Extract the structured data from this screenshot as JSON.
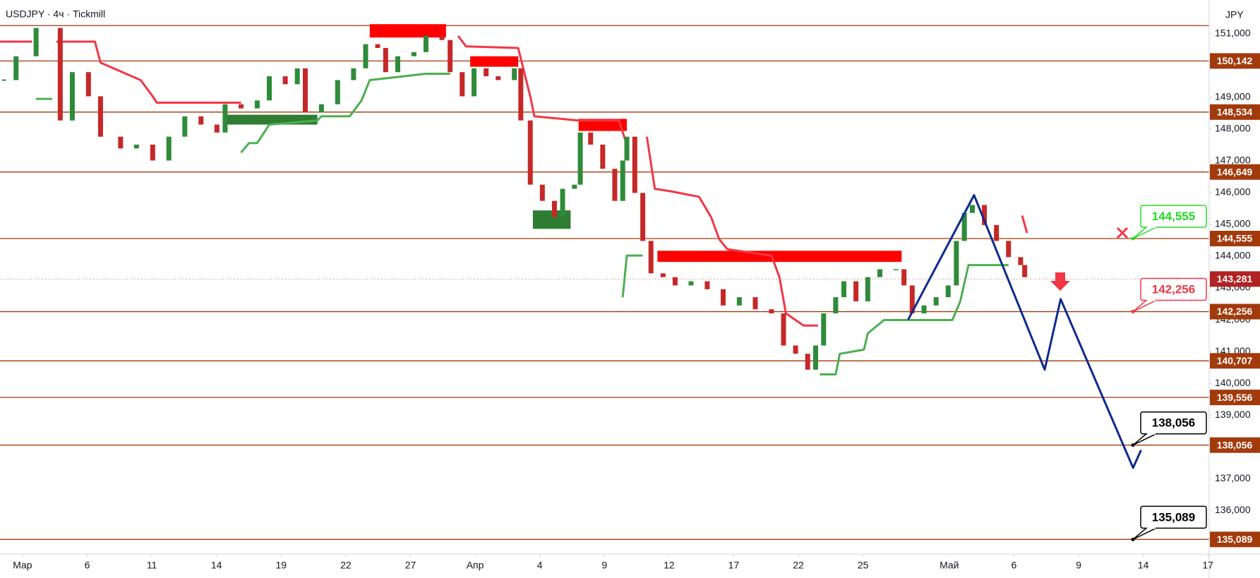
{
  "chart_data": {
    "type": "candlestick",
    "title": "USDJPY · 4ч · Tickmill",
    "y_axis_label": "JPY",
    "xlim": [
      -1.045,
      55.06
    ],
    "ylim": [
      134.63,
      152.06
    ],
    "xticks": [
      {
        "value": 0,
        "label": "Мар"
      },
      {
        "value": 3,
        "label": "6"
      },
      {
        "value": 6,
        "label": "11"
      },
      {
        "value": 9,
        "label": "14"
      },
      {
        "value": 12,
        "label": "19"
      },
      {
        "value": 15,
        "label": "22"
      },
      {
        "value": 18,
        "label": "27"
      },
      {
        "value": 21,
        "label": "Апр"
      },
      {
        "value": 24,
        "label": "4"
      },
      {
        "value": 27,
        "label": "9"
      },
      {
        "value": 30,
        "label": "12"
      },
      {
        "value": 33,
        "label": "17"
      },
      {
        "value": 36,
        "label": "22"
      },
      {
        "value": 39,
        "label": "25"
      },
      {
        "value": 43,
        "label": "Май"
      },
      {
        "value": 46,
        "label": "6"
      },
      {
        "value": 49,
        "label": "9"
      },
      {
        "value": 52,
        "label": "14"
      },
      {
        "value": 55,
        "label": "17"
      }
    ],
    "yticks": [
      {
        "value": 136,
        "label": "136,000"
      },
      {
        "value": 137,
        "label": "137,000"
      },
      {
        "value": 139,
        "label": "139,000"
      },
      {
        "value": 140,
        "label": "140,000"
      },
      {
        "value": 141,
        "label": "141,000"
      },
      {
        "value": 142,
        "label": "142,000"
      },
      {
        "value": 143,
        "label": "143,000"
      },
      {
        "value": 144,
        "label": "144,000"
      },
      {
        "value": 145,
        "label": "145,000"
      },
      {
        "value": 146,
        "label": "146,000"
      },
      {
        "value": 147,
        "label": "147,000"
      },
      {
        "value": 148,
        "label": "148,000"
      },
      {
        "value": 149,
        "label": "149,000"
      },
      {
        "value": 151,
        "label": "151,000"
      }
    ],
    "candles": {
      "up_color": "#2e8b3a",
      "down_color": "#c62828",
      "x": [
        -0.86,
        -0.3,
        0.63,
        1.75,
        2.31,
        3.06,
        3.62,
        4.55,
        5.29,
        6.04,
        6.79,
        7.53,
        8.28,
        9.02,
        9.4,
        10.14,
        10.89,
        11.45,
        12.19,
        12.75,
        13.12,
        13.87,
        14.62,
        15.36,
        15.92,
        16.48,
        16.85,
        17.41,
        18.16,
        18.72,
        19.46,
        19.84,
        20.4,
        20.95,
        21.51,
        22.07,
        22.82,
        23.12,
        23.56,
        24.12,
        24.68,
        25.06,
        25.61,
        25.88,
        26.36,
        26.92,
        27.48,
        27.85,
        28.04,
        28.41,
        28.78,
        29.16,
        29.72,
        30.28,
        31.02,
        31.77,
        32.51,
        33.26,
        34.0,
        34.75,
        35.31,
        35.87,
        36.43,
        36.8,
        37.17,
        37.73,
        38.11,
        38.67,
        39.22,
        39.78,
        40.53,
        40.9,
        41.28,
        41.83,
        42.39,
        42.95,
        43.33,
        43.7,
        44.07,
        44.63,
        45.19,
        45.75,
        46.31,
        46.5
      ],
      "close": [
        149.54,
        150.29,
        151.18,
        148.27,
        149.79,
        149.03,
        147.76,
        147.39,
        147.51,
        147.01,
        147.76,
        148.4,
        148.14,
        147.89,
        148.78,
        148.65,
        148.9,
        149.66,
        149.41,
        149.91,
        148.52,
        148.78,
        149.54,
        149.91,
        150.67,
        150.55,
        149.79,
        150.29,
        150.42,
        150.93,
        150.8,
        149.79,
        149.03,
        149.91,
        149.66,
        149.54,
        149.91,
        148.27,
        146.25,
        145.74,
        145.23,
        146.12,
        146.25,
        147.89,
        147.51,
        146.75,
        145.74,
        147.01,
        147.76,
        145.99,
        144.48,
        143.46,
        143.34,
        143.08,
        143.21,
        142.96,
        142.45,
        142.71,
        142.33,
        142.2,
        141.19,
        140.93,
        140.43,
        141.19,
        142.2,
        142.71,
        143.21,
        142.58,
        143.34,
        143.59,
        143.59,
        143.08,
        142.2,
        142.45,
        142.71,
        143.08,
        144.48,
        145.36,
        145.61,
        144.98,
        144.48,
        143.97,
        143.72,
        143.34
      ]
    },
    "supertrend_upper": {
      "color": "#f23645",
      "x": [
        -1.04,
        0.45,
        null,
        1.57,
        3.36,
        3.62,
        5.48,
        6.04,
        6.23,
        10.14,
        null,
        20.21,
        20.58,
        23.0,
        23.56,
        23.75,
        25.8,
        27.67,
        28.04,
        null,
        28.97,
        29.34,
        30.09,
        31.39,
        31.95,
        32.33,
        32.7,
        34.75,
        35.12,
        35.42,
        36.24,
        36.91,
        null,
        46.38,
        46.61
      ],
      "values": [
        150.75,
        150.75,
        null,
        150.75,
        150.75,
        150.09,
        149.54,
        149.03,
        148.83,
        148.83,
        null,
        150.93,
        150.6,
        150.55,
        149.03,
        148.4,
        148.27,
        148.27,
        147.51,
        null,
        147.76,
        146.12,
        146.04,
        145.87,
        145.23,
        144.53,
        144.22,
        144.02,
        143.34,
        142.2,
        141.82,
        141.82,
        null,
        145.28,
        144.73
      ]
    },
    "supertrend_lower": {
      "color": "#4caf50",
      "x": [
        0.63,
        1.38,
        null,
        10.14,
        10.51,
        10.89,
        11.45,
        13.68,
        13.87,
        15.18,
        15.73,
        16.11,
        18.72,
        19.84,
        null,
        27.85,
        28.04,
        28.78,
        null,
        36.99,
        37.73,
        37.92,
        39.04,
        39.22,
        39.97,
        43.14,
        43.51,
        43.89,
        45.75
      ],
      "values": [
        148.95,
        148.95,
        null,
        147.26,
        147.56,
        147.56,
        148.14,
        148.27,
        148.4,
        148.4,
        148.9,
        149.54,
        149.74,
        149.74,
        null,
        142.71,
        144.02,
        144.02,
        null,
        140.28,
        140.28,
        140.93,
        141.06,
        141.57,
        141.99,
        141.99,
        142.58,
        143.72,
        143.72
      ]
    },
    "zones": [
      {
        "color": "#ff0000",
        "x": [
          16.11,
          19.65
        ],
        "y": [
          151.3,
          150.88
        ]
      },
      {
        "color": "#ff0000",
        "x": [
          20.77,
          23.0
        ],
        "y": [
          150.29,
          149.96
        ]
      },
      {
        "color": "#2e7d32",
        "x": [
          9.32,
          13.68
        ],
        "y": [
          148.45,
          148.14
        ]
      },
      {
        "color": "#ff0000",
        "x": [
          25.8,
          28.04
        ],
        "y": [
          148.32,
          147.94
        ]
      },
      {
        "color": "#2e7d32",
        "x": [
          23.68,
          25.43
        ],
        "y": [
          145.44,
          144.86
        ]
      },
      {
        "color": "#ff0000",
        "x": [
          29.46,
          40.79
        ],
        "y": [
          144.17,
          143.82
        ]
      }
    ],
    "level_color": "#a23a0c",
    "levels": [
      {
        "value": 151.255
      },
      {
        "value": 150.142,
        "label": "150,142"
      },
      {
        "value": 148.534,
        "label": "148,534"
      },
      {
        "value": 146.649,
        "label": "146,649"
      },
      {
        "value": 144.555,
        "label": "144,555"
      },
      {
        "value": 142.256,
        "label": "142,256"
      },
      {
        "value": 140.707,
        "label": "140,707"
      },
      {
        "value": 139.556,
        "label": "139,556"
      },
      {
        "value": 138.056,
        "label": "138,056"
      },
      {
        "value": 135.089,
        "label": "135,089"
      }
    ],
    "current_price": {
      "value": 143.281,
      "label": "143,281",
      "color": "#b22222"
    },
    "projection": {
      "color": "#0d2a8f",
      "x": [
        41.09,
        44.15,
        47.43,
        48.17,
        51.53,
        51.9
      ],
      "values": [
        142.0,
        145.92,
        140.43,
        142.65,
        137.34,
        137.9
      ]
    },
    "callouts": [
      {
        "label": "144,555",
        "value": 144.555,
        "color": "#22dd22"
      },
      {
        "label": "142,256",
        "value": 142.256,
        "color": "#f23645"
      },
      {
        "label": "138,056",
        "value": 138.056,
        "color": "#000000"
      },
      {
        "label": "135,089",
        "value": 135.089,
        "color": "#000000"
      }
    ]
  }
}
